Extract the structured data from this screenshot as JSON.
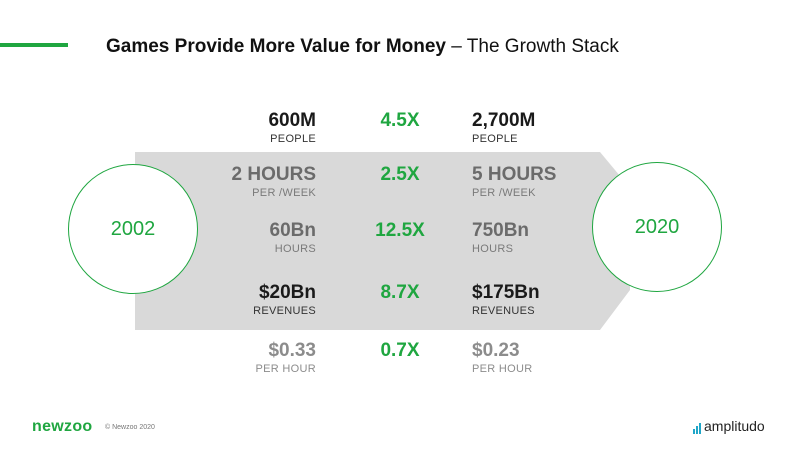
{
  "header": {
    "title_bold": "Games Provide More Value for Money",
    "title_rest": " – The Growth Stack"
  },
  "circles": {
    "left": "2002",
    "right": "2020"
  },
  "rows": [
    {
      "left_value": "600M",
      "left_label": "PEOPLE",
      "multiplier": "4.5X",
      "right_value": "2,700M",
      "right_label": "PEOPLE"
    },
    {
      "left_value": "2 HOURS",
      "left_label": "PER /WEEK",
      "multiplier": "2.5X",
      "right_value": "5 HOURS",
      "right_label": "PER /WEEK"
    },
    {
      "left_value": "60Bn",
      "left_label": "HOURS",
      "multiplier": "12.5X",
      "right_value": "750Bn",
      "right_label": "HOURS"
    },
    {
      "left_value": "$20Bn",
      "left_label": "REVENUES",
      "multiplier": "8.7X",
      "right_value": "$175Bn",
      "right_label": "REVENUES"
    },
    {
      "left_value": "$0.33",
      "left_label": "PER HOUR",
      "multiplier": "0.7X",
      "right_value": "$0.23",
      "right_label": "PER HOUR"
    }
  ],
  "footer": {
    "logo_left": "newzoo",
    "copyright": "© Newzoo 2020",
    "logo_right": "amplitudo"
  },
  "colors": {
    "accent": "#1fa640",
    "arrow": "#d9d9d9"
  }
}
